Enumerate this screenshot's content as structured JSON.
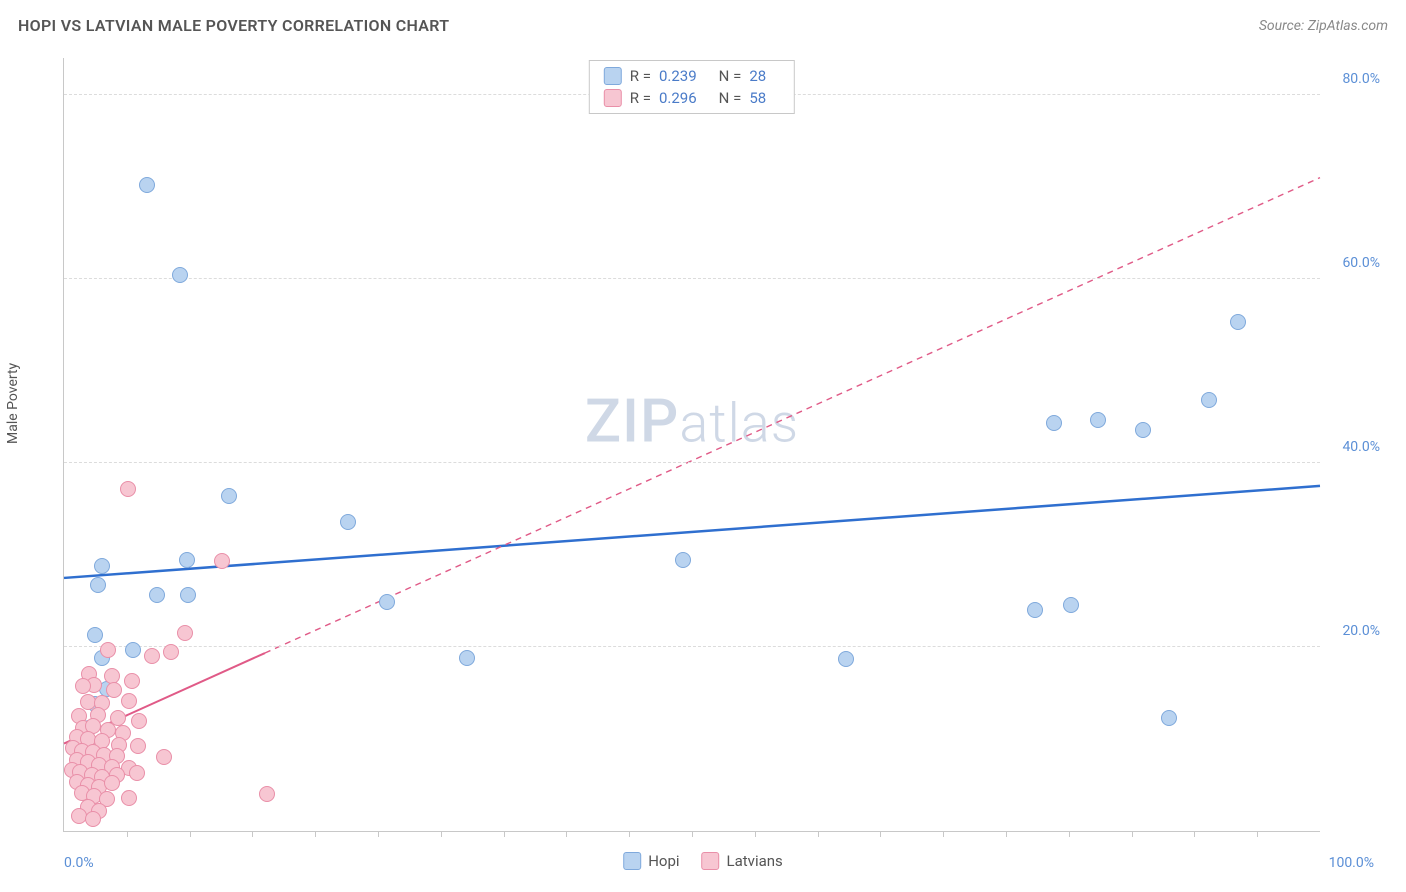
{
  "title": "HOPI VS LATVIAN MALE POVERTY CORRELATION CHART",
  "source": "Source: ZipAtlas.com",
  "y_axis_label": "Male Poverty",
  "watermark": {
    "zip": "ZIP",
    "atlas": "atlas"
  },
  "chart": {
    "type": "scatter",
    "background_color": "#ffffff",
    "grid_color": "#dcdcdc",
    "axis_color": "#c8c8c8",
    "xlim": [
      0,
      100
    ],
    "ylim": [
      0,
      84
    ],
    "y_ticks": [
      20,
      40,
      60,
      80
    ],
    "y_tick_labels": [
      "20.0%",
      "40.0%",
      "60.0%",
      "80.0%"
    ],
    "x_tick_minor_step": 5,
    "x_tick_labels": [
      {
        "x": 0,
        "label": "0.0%"
      },
      {
        "x": 100,
        "label": "100.0%"
      }
    ],
    "series": [
      {
        "name": "Hopi",
        "color_fill": "#b9d3f0",
        "color_stroke": "#7fa9dc",
        "marker_radius": 8,
        "trend_color": "#2f6fcf",
        "trend_width": 2.5,
        "trend_dash": "none",
        "trend": {
          "x1": 0,
          "y1": 27.5,
          "x2": 100,
          "y2": 37.5
        },
        "points": [
          {
            "x": 6.6,
            "y": 70.2
          },
          {
            "x": 9.2,
            "y": 60.4
          },
          {
            "x": 93.5,
            "y": 55.3
          },
          {
            "x": 91.2,
            "y": 46.8
          },
          {
            "x": 82.3,
            "y": 44.7
          },
          {
            "x": 85.9,
            "y": 43.6
          },
          {
            "x": 78.8,
            "y": 44.3
          },
          {
            "x": 13.1,
            "y": 36.4
          },
          {
            "x": 22.6,
            "y": 33.6
          },
          {
            "x": 49.3,
            "y": 29.4
          },
          {
            "x": 9.8,
            "y": 29.5
          },
          {
            "x": 3.0,
            "y": 28.8
          },
          {
            "x": 2.7,
            "y": 26.7
          },
          {
            "x": 7.4,
            "y": 25.6
          },
          {
            "x": 9.9,
            "y": 25.7
          },
          {
            "x": 25.7,
            "y": 24.9
          },
          {
            "x": 80.2,
            "y": 24.6
          },
          {
            "x": 77.3,
            "y": 24.0
          },
          {
            "x": 2.5,
            "y": 21.3
          },
          {
            "x": 3.0,
            "y": 18.8
          },
          {
            "x": 5.5,
            "y": 19.7
          },
          {
            "x": 32.1,
            "y": 18.8
          },
          {
            "x": 62.3,
            "y": 18.7
          },
          {
            "x": 3.4,
            "y": 15.4
          },
          {
            "x": 2.5,
            "y": 13.8
          },
          {
            "x": 88.0,
            "y": 12.3
          },
          {
            "x": 2.0,
            "y": 11.2
          },
          {
            "x": 2.3,
            "y": 8.9
          }
        ]
      },
      {
        "name": "Latvians",
        "color_fill": "#f7c6d2",
        "color_stroke": "#e98fa8",
        "marker_radius": 8,
        "trend_color": "#e05a87",
        "trend_width": 2,
        "trend_dash": "6,5",
        "trend_solid_until_x": 16,
        "trend": {
          "x1": 0,
          "y1": 9.5,
          "x2": 100,
          "y2": 71.0
        },
        "points": [
          {
            "x": 5.1,
            "y": 37.2
          },
          {
            "x": 12.6,
            "y": 29.3
          },
          {
            "x": 9.6,
            "y": 21.5
          },
          {
            "x": 8.5,
            "y": 19.5
          },
          {
            "x": 7.0,
            "y": 19.0
          },
          {
            "x": 3.5,
            "y": 19.7
          },
          {
            "x": 2.0,
            "y": 17.1
          },
          {
            "x": 3.8,
            "y": 16.8
          },
          {
            "x": 5.4,
            "y": 16.3
          },
          {
            "x": 4.0,
            "y": 15.3
          },
          {
            "x": 2.4,
            "y": 15.9
          },
          {
            "x": 1.5,
            "y": 15.8
          },
          {
            "x": 1.9,
            "y": 14.0
          },
          {
            "x": 3.0,
            "y": 13.9
          },
          {
            "x": 5.2,
            "y": 14.1
          },
          {
            "x": 1.2,
            "y": 12.5
          },
          {
            "x": 2.7,
            "y": 12.6
          },
          {
            "x": 4.3,
            "y": 12.3
          },
          {
            "x": 6.0,
            "y": 12.0
          },
          {
            "x": 1.5,
            "y": 11.2
          },
          {
            "x": 2.3,
            "y": 11.4
          },
          {
            "x": 3.5,
            "y": 11.0
          },
          {
            "x": 4.7,
            "y": 10.7
          },
          {
            "x": 1.0,
            "y": 10.2
          },
          {
            "x": 1.9,
            "y": 10.0
          },
          {
            "x": 3.0,
            "y": 9.8
          },
          {
            "x": 4.4,
            "y": 9.4
          },
          {
            "x": 5.9,
            "y": 9.2
          },
          {
            "x": 0.7,
            "y": 9.0
          },
          {
            "x": 1.4,
            "y": 8.7
          },
          {
            "x": 2.3,
            "y": 8.6
          },
          {
            "x": 3.2,
            "y": 8.3
          },
          {
            "x": 4.2,
            "y": 8.2
          },
          {
            "x": 8.0,
            "y": 8.0
          },
          {
            "x": 1.0,
            "y": 7.7
          },
          {
            "x": 1.9,
            "y": 7.5
          },
          {
            "x": 2.8,
            "y": 7.2
          },
          {
            "x": 3.8,
            "y": 7.0
          },
          {
            "x": 5.2,
            "y": 6.9
          },
          {
            "x": 0.6,
            "y": 6.6
          },
          {
            "x": 1.3,
            "y": 6.4
          },
          {
            "x": 2.2,
            "y": 6.1
          },
          {
            "x": 3.0,
            "y": 5.9
          },
          {
            "x": 4.2,
            "y": 6.1
          },
          {
            "x": 5.8,
            "y": 6.3
          },
          {
            "x": 1.0,
            "y": 5.3
          },
          {
            "x": 1.9,
            "y": 5.0
          },
          {
            "x": 2.8,
            "y": 4.8
          },
          {
            "x": 3.8,
            "y": 5.2
          },
          {
            "x": 1.4,
            "y": 4.1
          },
          {
            "x": 2.4,
            "y": 3.8
          },
          {
            "x": 3.4,
            "y": 3.5
          },
          {
            "x": 5.2,
            "y": 3.6
          },
          {
            "x": 16.2,
            "y": 4.0
          },
          {
            "x": 1.9,
            "y": 2.6
          },
          {
            "x": 2.8,
            "y": 2.2
          },
          {
            "x": 1.2,
            "y": 1.6
          },
          {
            "x": 2.3,
            "y": 1.3
          }
        ]
      }
    ]
  },
  "legend_top": [
    {
      "swatch_fill": "#b9d3f0",
      "swatch_stroke": "#7fa9dc",
      "R": "0.239",
      "N": "28"
    },
    {
      "swatch_fill": "#f7c6d2",
      "swatch_stroke": "#e98fa8",
      "R": "0.296",
      "N": "58"
    }
  ],
  "legend_bottom": [
    {
      "swatch_fill": "#b9d3f0",
      "swatch_stroke": "#7fa9dc",
      "label": "Hopi"
    },
    {
      "swatch_fill": "#f7c6d2",
      "swatch_stroke": "#e98fa8",
      "label": "Latvians"
    }
  ],
  "legend_labels": {
    "R": "R =",
    "N": "N ="
  }
}
